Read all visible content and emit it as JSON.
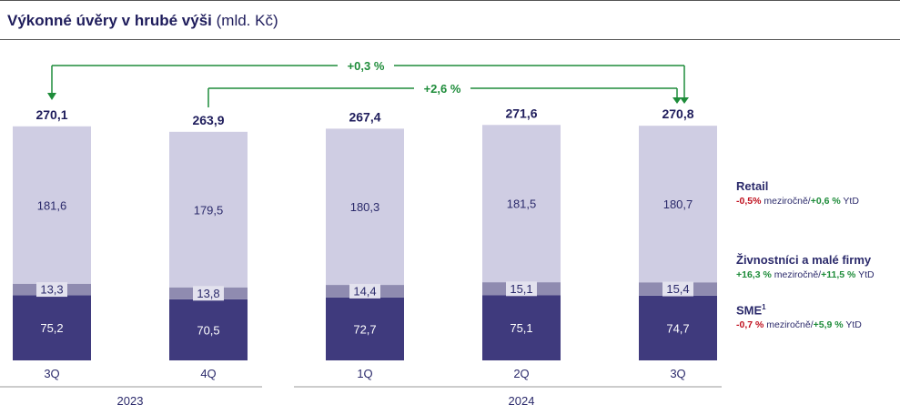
{
  "title": {
    "bold": "Výkonné úvěry v hrubé výši",
    "unit": "(mld. Kč)"
  },
  "chart_data": {
    "type": "bar",
    "stacked": true,
    "categories": [
      "3Q",
      "4Q",
      "1Q",
      "2Q",
      "3Q"
    ],
    "year_groups": [
      {
        "label": "2023",
        "categories": [
          0,
          1
        ]
      },
      {
        "label": "2024",
        "categories": [
          2,
          3,
          4
        ]
      }
    ],
    "totals": [
      "270,1",
      "263,9",
      "267,4",
      "271,6",
      "270,8"
    ],
    "series": [
      {
        "name": "SME",
        "values": [
          75.2,
          70.5,
          72.7,
          75.1,
          74.7
        ],
        "labels": [
          "75,2",
          "70,5",
          "72,7",
          "75,1",
          "74,7"
        ],
        "color": "#3f3a7d"
      },
      {
        "name": "Živnostníci a malé firmy",
        "values": [
          13.3,
          13.8,
          14.4,
          15.1,
          15.4
        ],
        "labels": [
          "13,3",
          "13,8",
          "14,4",
          "15,1",
          "15,4"
        ],
        "color": "#8f8bb0"
      },
      {
        "name": "Retail",
        "values": [
          181.6,
          179.5,
          180.3,
          181.5,
          180.7
        ],
        "labels": [
          "181,6",
          "179,5",
          "180,3",
          "181,5",
          "180,7"
        ],
        "color": "#cfcde3"
      }
    ],
    "ylim": [
      0,
      272
    ],
    "annotations": [
      {
        "label": "+0,3 %",
        "from": 0,
        "to": 4
      },
      {
        "label": "+2,6 %",
        "from": 1,
        "to": 4
      }
    ]
  },
  "legend": [
    {
      "name": "Retail",
      "sup": "",
      "yoy": "-0,5%",
      "ytd": "+0,6 %",
      "yoy_text": " meziročně/",
      "ytd_text": " YtD"
    },
    {
      "name": "Živnostníci a malé firmy",
      "sup": "",
      "yoy": "+16,3 %",
      "ytd": "+11,5 %",
      "yoy_text": " meziročně/",
      "ytd_text": " YtD"
    },
    {
      "name": "SME",
      "sup": "1",
      "yoy": "-0,7 %",
      "ytd": "+5,9 %",
      "yoy_text": " meziročně/",
      "ytd_text": " YtD"
    }
  ],
  "colors": {
    "arrow": "#1e8c3a",
    "text": "#2b2a6b",
    "axis_line": "#9a9a9a"
  }
}
